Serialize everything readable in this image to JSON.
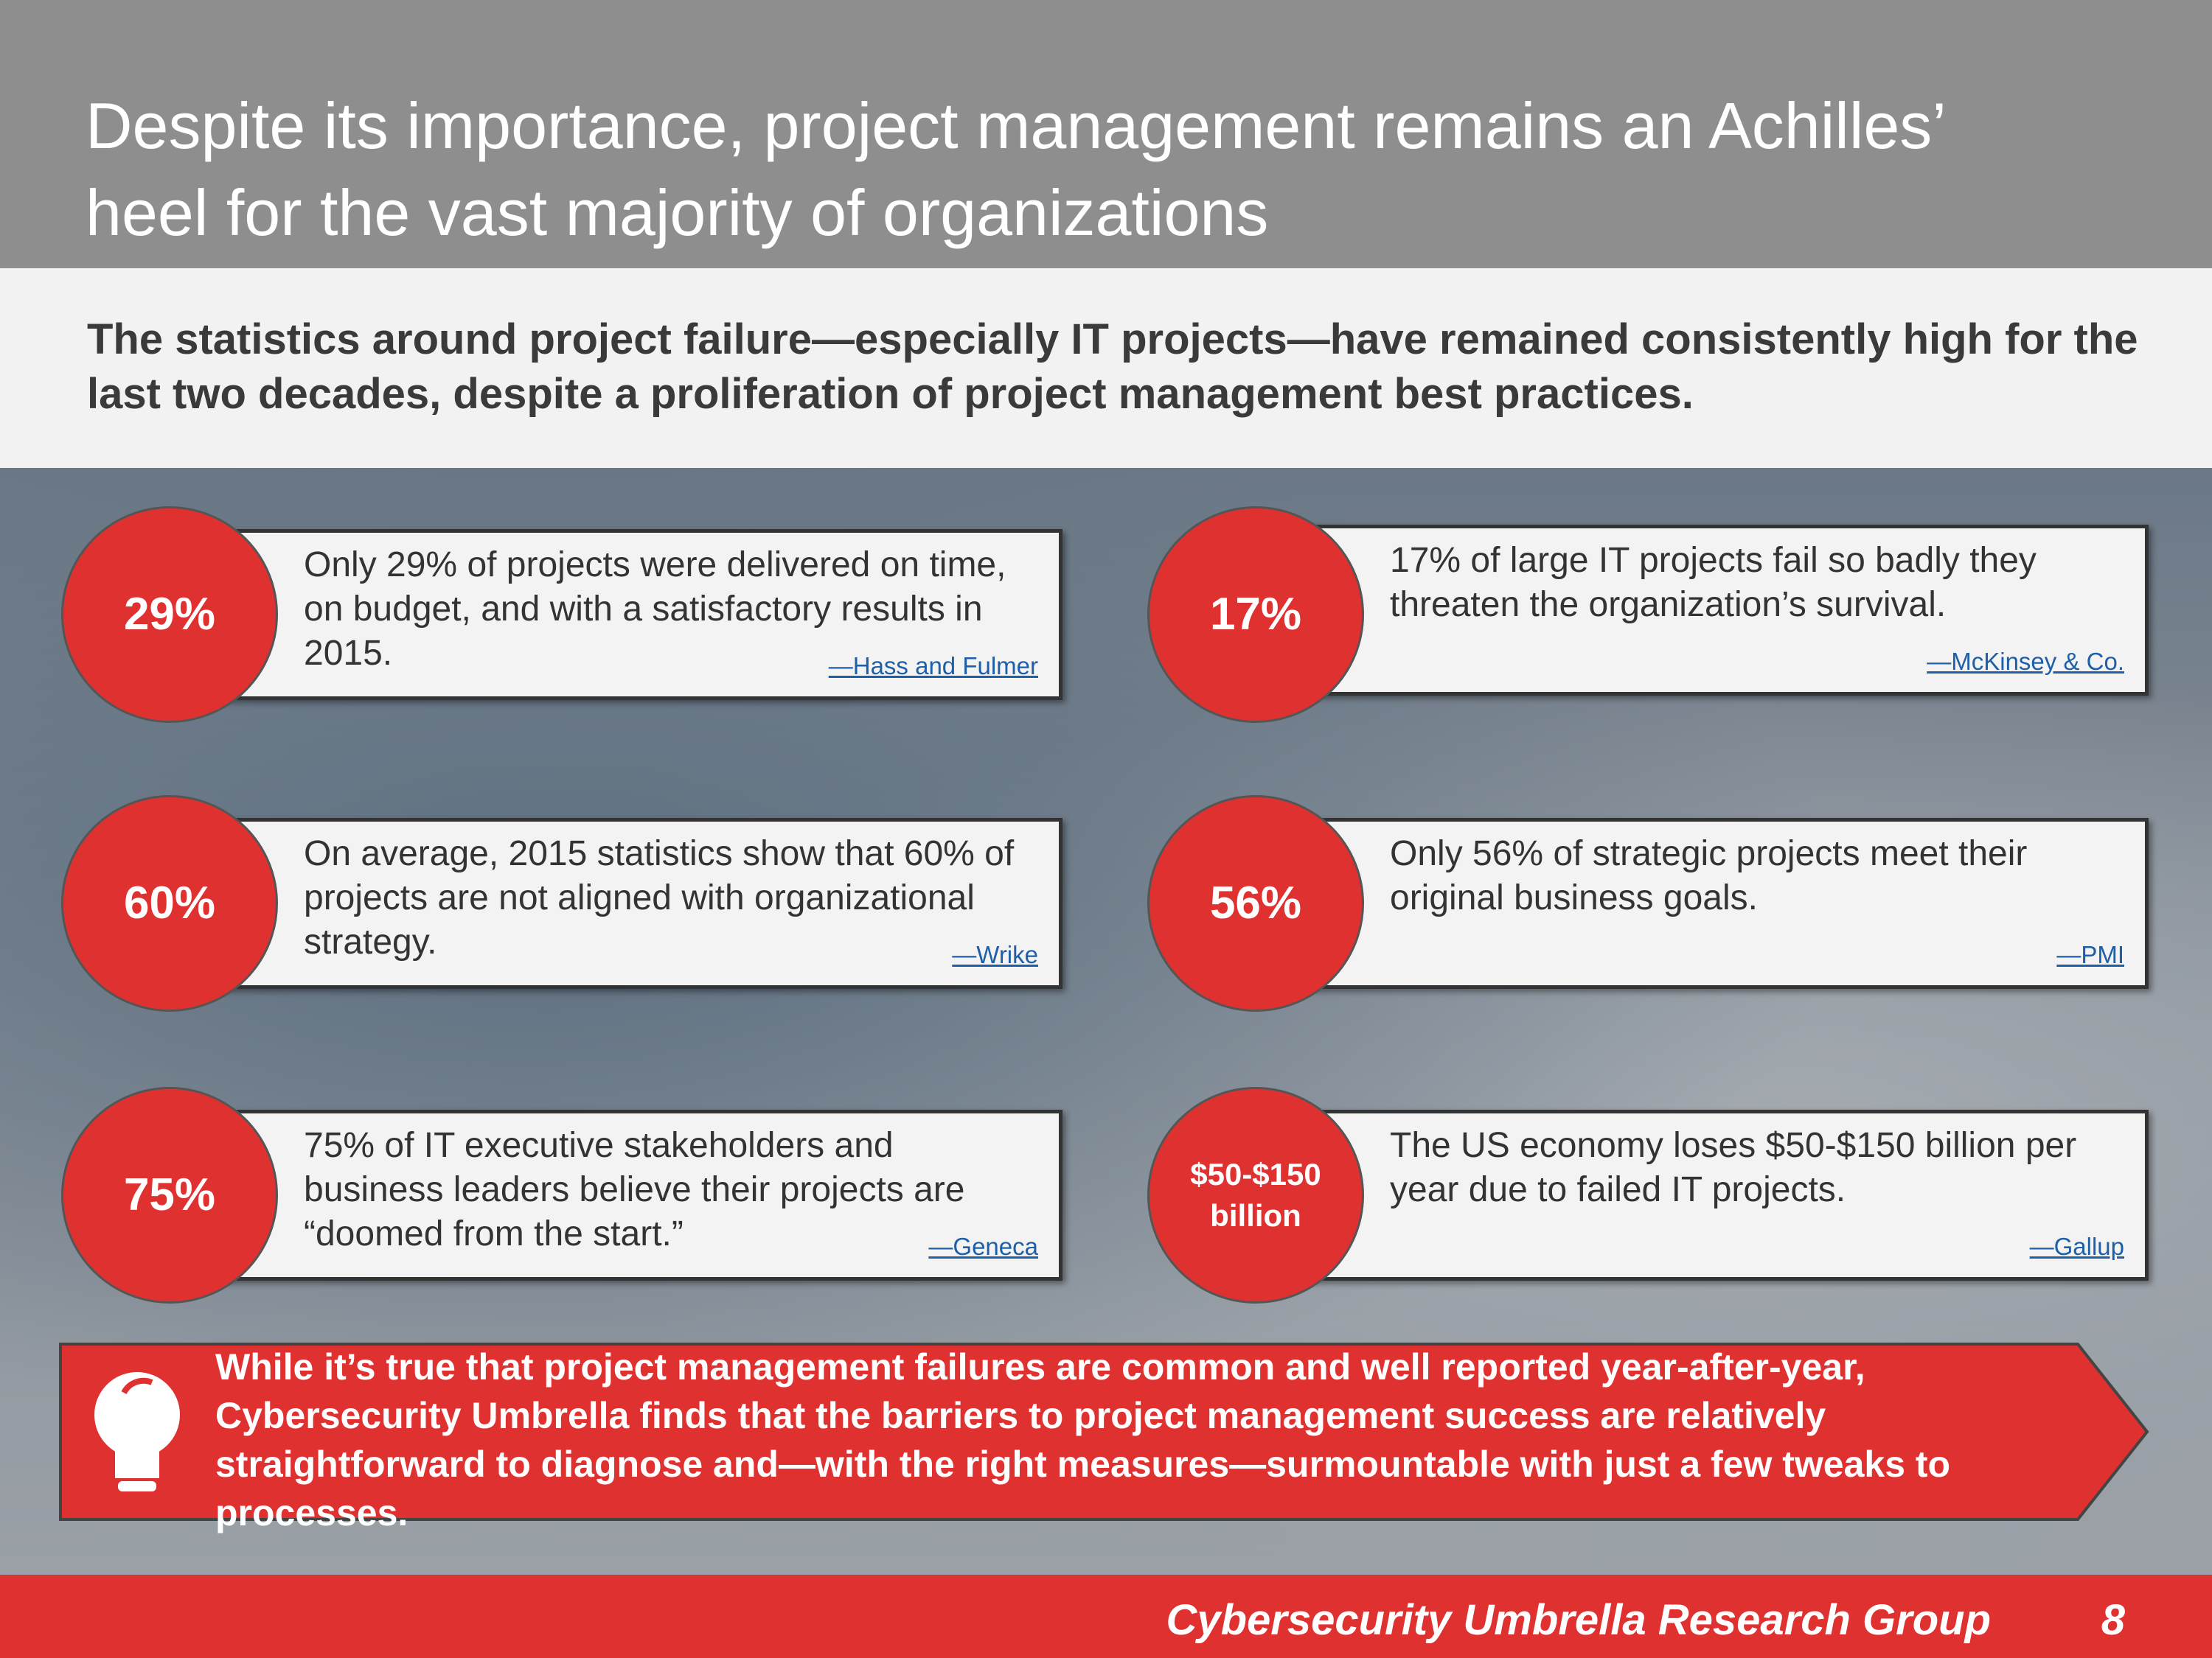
{
  "header": {
    "title": "Despite its importance, project management remains an Achilles’ heel for the vast majority of organizations",
    "subtitle": "The statistics around project failure—especially IT projects—have remained consistently high for the last two decades, despite a proliferation of project management best practices."
  },
  "cards": [
    {
      "stat": "29%",
      "text": "Only 29% of projects were delivered on time, on budget, and with a satisfactory results in 2015.",
      "source": "—Hass and Fulmer"
    },
    {
      "stat": "17%",
      "text": "17% of large IT projects fail so badly they threaten the organization’s survival.",
      "source": "—McKinsey & Co."
    },
    {
      "stat": "60%",
      "text": "On average, 2015 statistics show that 60% of projects are not aligned with organizational strategy.",
      "source": "—Wrike"
    },
    {
      "stat": "56%",
      "text": "Only 56% of strategic projects meet their original business goals.",
      "source": "—PMI"
    },
    {
      "stat": "75%",
      "text": "75% of IT executive stakeholders and business leaders believe their projects are “doomed from the start.”",
      "source": "—Geneca"
    },
    {
      "stat": "$50-$150 billion",
      "text": "The US economy loses $50-$150 billion per year due to failed IT projects.",
      "source": "—Gallup"
    }
  ],
  "callout": "While it’s true that project management failures are common and well reported year-after-year, Cybersecurity Umbrella finds that the barriers to project management success are relatively straightforward to diagnose and—with the right measures—surmountable with just a few tweaks to processes.",
  "footer": {
    "org": "Cybersecurity Umbrella Research Group",
    "page": "8"
  }
}
